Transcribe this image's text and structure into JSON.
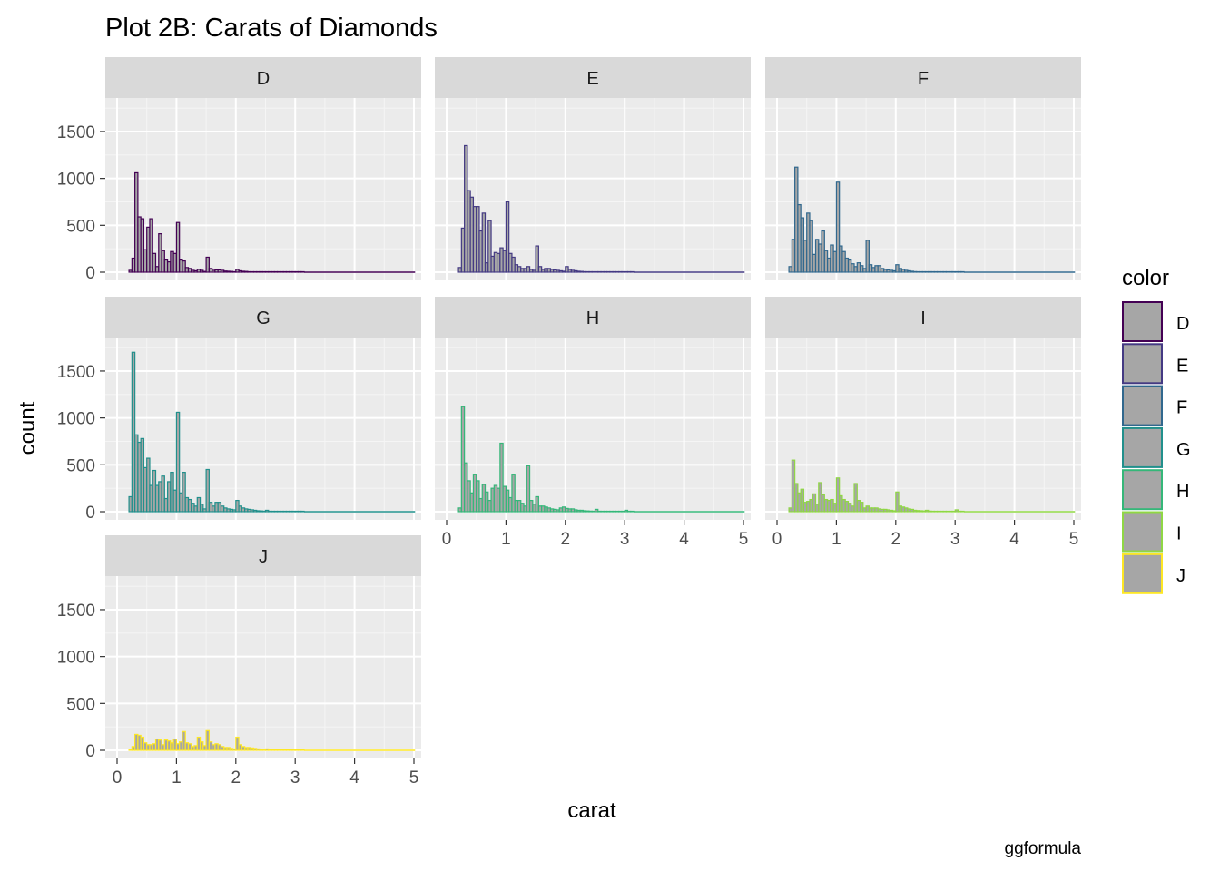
{
  "chart_data": {
    "type": "histogram-facet",
    "title": "Plot 2B: Carats of Diamonds",
    "xlabel": "carat",
    "ylabel": "count",
    "caption": "ggformula",
    "legend": {
      "title": "color",
      "placement": "right",
      "fill": "#a6a6a6",
      "items": [
        {
          "name": "D",
          "color": "#440154"
        },
        {
          "name": "E",
          "color": "#443A83"
        },
        {
          "name": "F",
          "color": "#31688E"
        },
        {
          "name": "G",
          "color": "#21908C"
        },
        {
          "name": "H",
          "color": "#35B779"
        },
        {
          "name": "I",
          "color": "#8FD744"
        },
        {
          "name": "J",
          "color": "#FDE725"
        }
      ]
    },
    "xlim": [
      0,
      5
    ],
    "ylim": [
      0,
      1700
    ],
    "x_ticks": [
      "0",
      "1",
      "2",
      "3",
      "4",
      "5"
    ],
    "y_ticks": [
      "0",
      "500",
      "1000",
      "1500"
    ],
    "bin_width": 0.05,
    "bin_starts": [
      0.2,
      0.25,
      0.3,
      0.35,
      0.4,
      0.45,
      0.5,
      0.55,
      0.6,
      0.65,
      0.7,
      0.75,
      0.8,
      0.85,
      0.9,
      0.95,
      1.0,
      1.05,
      1.1,
      1.15,
      1.2,
      1.25,
      1.3,
      1.35,
      1.4,
      1.45,
      1.5,
      1.55,
      1.6,
      1.65,
      1.7,
      1.75,
      1.8,
      1.85,
      1.9,
      1.95,
      2.0,
      2.05,
      2.1,
      2.15,
      2.2,
      2.25,
      2.3,
      2.35,
      2.4,
      2.45,
      2.5,
      2.55,
      2.6,
      2.65,
      2.7,
      2.75,
      2.8,
      2.85,
      2.9,
      2.95,
      3.0,
      3.05,
      3.1
    ],
    "panels": [
      {
        "label": "D",
        "counts": [
          20,
          150,
          1060,
          590,
          570,
          240,
          480,
          570,
          200,
          60,
          410,
          230,
          130,
          110,
          220,
          200,
          530,
          130,
          120,
          50,
          40,
          20,
          15,
          30,
          20,
          8,
          160,
          40,
          20,
          25,
          25,
          20,
          12,
          10,
          8,
          5,
          30,
          15,
          10,
          8,
          5,
          4,
          3,
          2,
          2,
          2,
          1,
          1,
          1,
          1,
          1,
          0,
          0,
          0,
          0,
          0,
          1,
          0,
          0
        ]
      },
      {
        "label": "E",
        "counts": [
          50,
          470,
          1350,
          870,
          800,
          700,
          700,
          440,
          630,
          100,
          550,
          170,
          210,
          200,
          260,
          230,
          750,
          200,
          160,
          80,
          60,
          40,
          40,
          60,
          30,
          20,
          280,
          60,
          30,
          40,
          40,
          30,
          25,
          20,
          15,
          10,
          60,
          30,
          20,
          15,
          10,
          8,
          5,
          3,
          3,
          2,
          2,
          1,
          1,
          1,
          1,
          1,
          0,
          0,
          0,
          0,
          1,
          0,
          0
        ]
      },
      {
        "label": "F",
        "counts": [
          60,
          350,
          1120,
          720,
          580,
          340,
          630,
          550,
          190,
          350,
          300,
          440,
          230,
          150,
          290,
          220,
          960,
          280,
          220,
          150,
          130,
          90,
          60,
          100,
          70,
          40,
          340,
          80,
          50,
          70,
          70,
          40,
          30,
          25,
          20,
          15,
          80,
          40,
          30,
          20,
          15,
          10,
          6,
          4,
          3,
          2,
          2,
          1,
          1,
          1,
          1,
          1,
          0,
          0,
          0,
          0,
          1,
          0,
          0
        ]
      },
      {
        "label": "G",
        "counts": [
          160,
          1700,
          820,
          740,
          780,
          470,
          570,
          280,
          440,
          280,
          320,
          380,
          140,
          320,
          420,
          230,
          1060,
          200,
          420,
          150,
          130,
          90,
          60,
          150,
          80,
          30,
          450,
          100,
          60,
          100,
          100,
          60,
          40,
          30,
          25,
          20,
          120,
          60,
          40,
          30,
          25,
          20,
          15,
          10,
          8,
          6,
          15,
          5,
          3,
          2,
          2,
          1,
          1,
          1,
          1,
          1,
          5,
          1,
          1
        ]
      },
      {
        "label": "H",
        "counts": [
          40,
          1120,
          520,
          330,
          200,
          400,
          330,
          140,
          290,
          210,
          120,
          250,
          280,
          250,
          730,
          270,
          230,
          150,
          400,
          120,
          120,
          90,
          60,
          490,
          120,
          80,
          160,
          60,
          60,
          50,
          40,
          30,
          25,
          20,
          40,
          50,
          35,
          30,
          30,
          20,
          15,
          15,
          10,
          8,
          6,
          5,
          25,
          5,
          4,
          3,
          3,
          2,
          2,
          2,
          1,
          1,
          15,
          2,
          1
        ]
      },
      {
        "label": "I",
        "counts": [
          40,
          550,
          300,
          200,
          240,
          100,
          110,
          130,
          190,
          80,
          310,
          180,
          130,
          120,
          130,
          90,
          360,
          170,
          130,
          110,
          90,
          60,
          300,
          120,
          100,
          40,
          60,
          40,
          40,
          40,
          30,
          25,
          25,
          20,
          15,
          10,
          210,
          60,
          50,
          40,
          30,
          25,
          15,
          12,
          10,
          8,
          15,
          6,
          5,
          4,
          3,
          3,
          2,
          2,
          2,
          2,
          20,
          3,
          2
        ]
      },
      {
        "label": "J",
        "counts": [
          10,
          40,
          170,
          160,
          140,
          80,
          60,
          60,
          70,
          120,
          110,
          60,
          110,
          100,
          80,
          120,
          70,
          90,
          200,
          80,
          70,
          40,
          50,
          140,
          90,
          50,
          210,
          90,
          60,
          70,
          60,
          40,
          30,
          30,
          20,
          15,
          140,
          60,
          40,
          30,
          30,
          25,
          20,
          15,
          10,
          10,
          15,
          6,
          5,
          4,
          4,
          3,
          3,
          2,
          2,
          2,
          10,
          2,
          1
        ]
      }
    ]
  }
}
